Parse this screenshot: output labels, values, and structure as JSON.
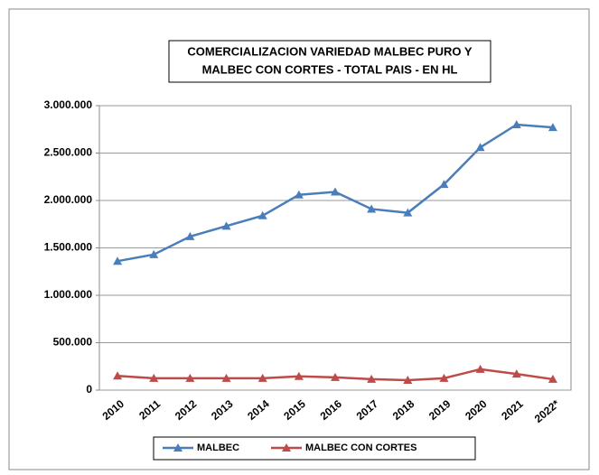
{
  "chart_data": {
    "type": "line",
    "title": [
      "COMERCIALIZACION VARIEDAD MALBEC PURO Y",
      "MALBEC CON CORTES - TOTAL PAIS - EN HL"
    ],
    "categories": [
      "2010",
      "2011",
      "2012",
      "2013",
      "2014",
      "2015",
      "2016",
      "2017",
      "2018",
      "2019",
      "2020",
      "2021",
      "2022*"
    ],
    "series": [
      {
        "name": "MALBEC",
        "color": "#4a7ebb",
        "values": [
          1360000,
          1430000,
          1620000,
          1730000,
          1840000,
          2060000,
          2090000,
          1910000,
          1870000,
          2170000,
          2560000,
          2800000,
          2770000
        ]
      },
      {
        "name": "MALBEC CON CORTES",
        "color": "#be4b48",
        "values": [
          150000,
          125000,
          125000,
          125000,
          125000,
          145000,
          135000,
          115000,
          105000,
          125000,
          220000,
          170000,
          115000
        ]
      }
    ],
    "ylim": [
      0,
      3000000
    ],
    "yticks": [
      0,
      {
        "value": 500000,
        "label": "500.000"
      },
      {
        "value": 1000000,
        "label": "1.000.000"
      },
      {
        "value": 1500000,
        "label": "1.500.000"
      },
      {
        "value": 2000000,
        "label": "2.000.000"
      },
      {
        "value": 2500000,
        "label": "2.500.000"
      },
      {
        "value": 3000000,
        "label": "3.000.000"
      }
    ],
    "grid": true,
    "legend": "bottom"
  }
}
